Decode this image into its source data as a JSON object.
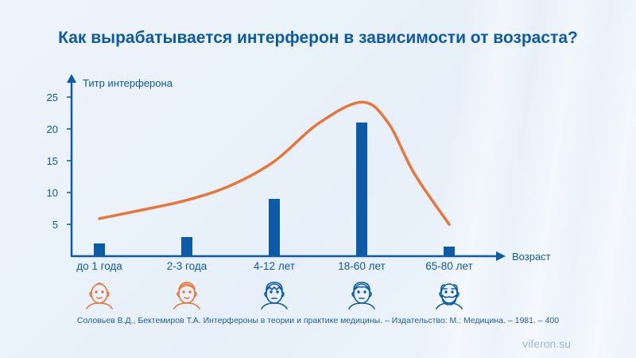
{
  "title": "Как вырабатывается интерферон в зависимости от возраста?",
  "source": "Соловьев В.Д., Бектемиров Т.А. Интерфероны в теории и практике медицины. – Издательство: М.: Медицина. – 1981. – 400",
  "site": "viferon.su",
  "colors": {
    "bar": "#0d5aa7",
    "curve": "#e8763a",
    "axis": "#0d5aa7",
    "text": "#0d5aa7",
    "icon_child": "#e8763a",
    "icon_adult": "#0d5aa7"
  },
  "icons": [
    "baby-face-icon",
    "child-face-icon",
    "boy-face-icon",
    "man-face-icon",
    "elderly-face-icon"
  ],
  "chart_data": {
    "type": "bar",
    "title": "Как вырабатывается интерферон в зависимости от возраста?",
    "ylabel": "Титр интерферона",
    "xlabel": "Возраст",
    "categories": [
      "до 1 года",
      "2-3 года",
      "4-12 лет",
      "18-60 лет",
      "65-80 лет"
    ],
    "values": [
      2,
      3,
      9,
      21,
      1.5
    ],
    "yticks": [
      5,
      10,
      15,
      20,
      25
    ],
    "ylim": [
      0,
      28
    ],
    "grid": false,
    "trend_curve": {
      "type": "line",
      "x": [
        0,
        0.5,
        1,
        1.5,
        2,
        2.5,
        3,
        3.3,
        3.6,
        4
      ],
      "values": [
        5.9,
        7.3,
        8.8,
        11.1,
        14.9,
        20.8,
        24.2,
        21,
        13,
        5
      ]
    }
  }
}
